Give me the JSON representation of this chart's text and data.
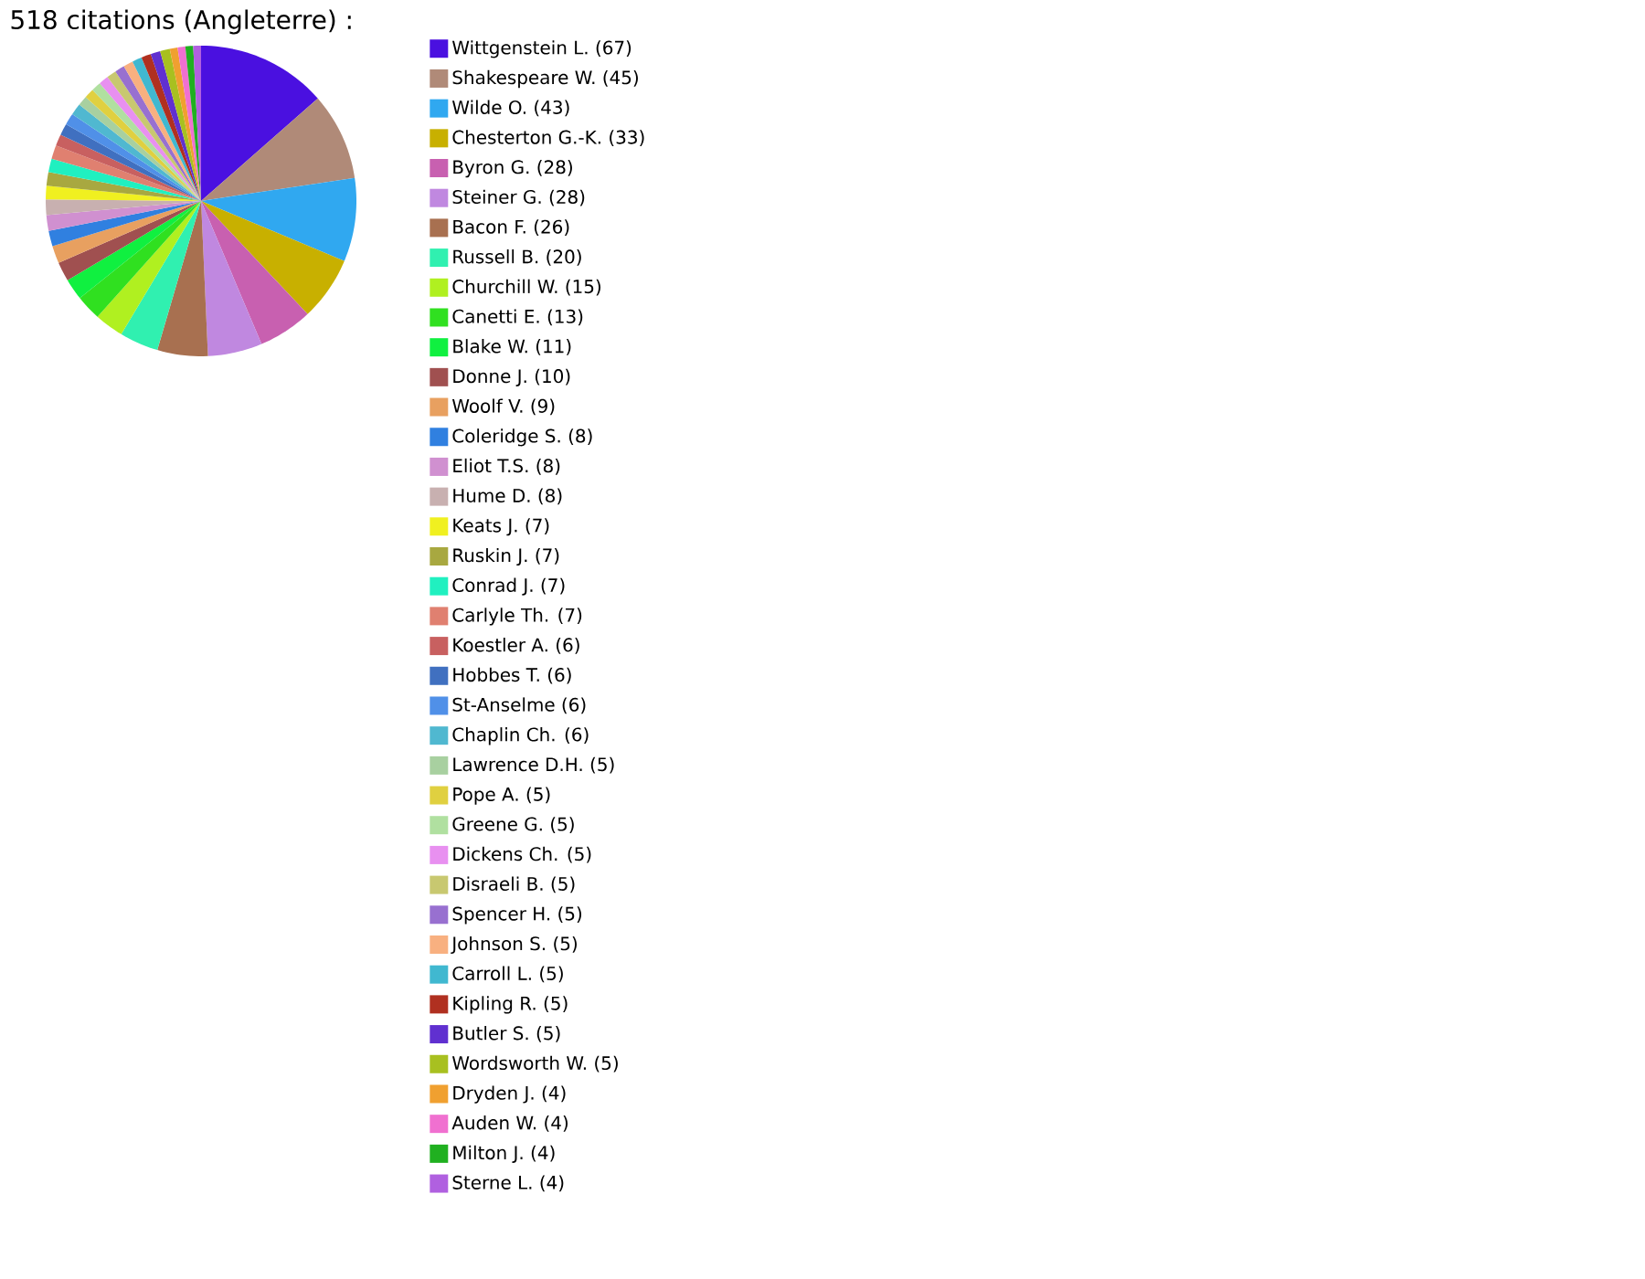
{
  "chart_data": {
    "type": "pie",
    "title": "518 citations (Angleterre) :",
    "legend": "right",
    "categories": [
      "Wittgenstein L. (67)",
      "Shakespeare W. (45)",
      "Wilde O. (43)",
      "Chesterton G.-K. (33)",
      "Byron G. (28)",
      "Steiner G. (28)",
      "Bacon F. (26)",
      "Russell B. (20)",
      "Churchill W. (15)",
      "Canetti E. (13)",
      "Blake W. (11)",
      "Donne J. (10)",
      "Woolf V. (9)",
      "Coleridge S. (8)",
      "Eliot T.S. (8)",
      "Hume D. (8)",
      "Keats J. (7)",
      "Ruskin J. (7)",
      "Conrad J. (7)",
      "Carlyle Th. (7)",
      "Koestler A. (6)",
      "Hobbes T. (6)",
      "St-Anselme (6)",
      "Chaplin Ch. (6)",
      "Lawrence D.H. (5)",
      "Pope A. (5)",
      "Greene G. (5)",
      "Dickens Ch. (5)",
      "Disraeli B. (5)",
      "Spencer H. (5)",
      "Johnson S. (5)",
      "Carroll L. (5)",
      "Kipling R. (5)",
      "Butler S. (5)",
      "Wordsworth W. (5)",
      "Dryden J. (4)",
      "Auden W. (4)",
      "Milton J. (4)",
      "Sterne L. (4)"
    ],
    "values": [
      67,
      45,
      43,
      33,
      28,
      28,
      26,
      20,
      15,
      13,
      11,
      10,
      9,
      8,
      8,
      8,
      7,
      7,
      7,
      7,
      6,
      6,
      6,
      6,
      5,
      5,
      5,
      5,
      5,
      5,
      5,
      5,
      5,
      5,
      5,
      4,
      4,
      4,
      4
    ],
    "colors": [
      "#4a10e0",
      "#b08a78",
      "#30a8f0",
      "#c8b000",
      "#c860b0",
      "#c088e0",
      "#a87050",
      "#30f0b0",
      "#b0f020",
      "#30e020",
      "#10f040",
      "#a05050",
      "#e8a060",
      "#3080e0",
      "#d090d0",
      "#c8b0b0",
      "#f0f020",
      "#a8a840",
      "#20f0c0",
      "#e08070",
      "#c86060",
      "#4070c0",
      "#5090e8",
      "#50b8d0",
      "#a8d0a0",
      "#e0d040",
      "#b0e0a0",
      "#e890f0",
      "#c8c870",
      "#9870d0",
      "#f8b080",
      "#40b8d0",
      "#b03020",
      "#6030d0",
      "#a8c020",
      "#f0a030",
      "#f070d0",
      "#20b020",
      "#b060e0"
    ]
  }
}
